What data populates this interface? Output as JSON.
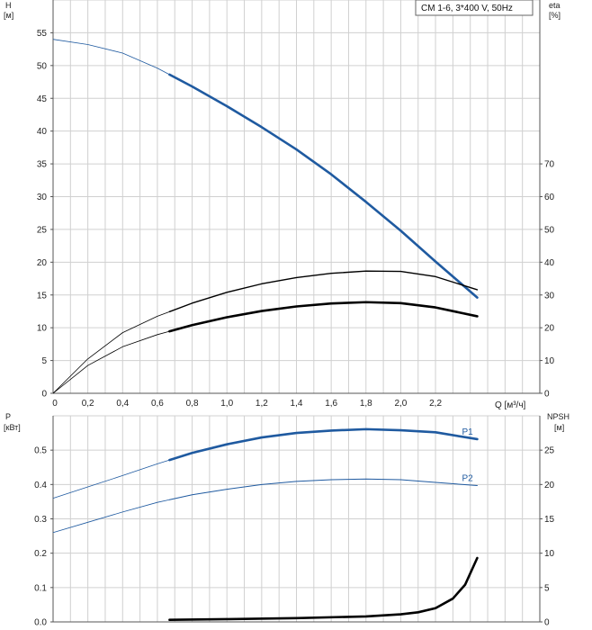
{
  "title_box": "CM 1-6, 3*400 V, 50Hz",
  "colors": {
    "blue": "#1f5aa0",
    "black": "#000000",
    "grid": "#d0d0d0",
    "axis": "#555555"
  },
  "chart_data": [
    {
      "type": "line",
      "xlabel": "Q [м³/ч]",
      "x_ticks": [
        "0",
        "0,2",
        "0,4",
        "0,6",
        "0,8",
        "1,0",
        "1,2",
        "1,4",
        "1,6",
        "1,8",
        "2,0",
        "2,2"
      ],
      "xlim": [
        0,
        2.8
      ],
      "ylabel_left": [
        "H",
        "[м]"
      ],
      "ylim_left": [
        0,
        60
      ],
      "y_ticks_left": [
        0,
        5,
        10,
        15,
        20,
        25,
        30,
        35,
        40,
        45,
        50,
        55
      ],
      "ylabel_right": [
        "eta",
        "[%]"
      ],
      "ylim_right": [
        0,
        120
      ],
      "y_ticks_right": [
        0,
        10,
        20,
        30,
        40,
        50,
        60,
        70
      ],
      "series": [
        {
          "axis": "left",
          "color": "#1f5aa0",
          "weight": "bold",
          "start_bold": 0.67,
          "points": [
            [
              0,
              54
            ],
            [
              0.2,
              53.2
            ],
            [
              0.4,
              51.9
            ],
            [
              0.6,
              49.6
            ],
            [
              0.8,
              46.8
            ],
            [
              1.0,
              43.8
            ],
            [
              1.2,
              40.6
            ],
            [
              1.4,
              37.2
            ],
            [
              1.6,
              33.4
            ],
            [
              1.8,
              29.2
            ],
            [
              2.0,
              24.8
            ],
            [
              2.2,
              20.1
            ],
            [
              2.44,
              14.6
            ]
          ]
        },
        {
          "axis": "right",
          "color": "#000000",
          "weight": "medium",
          "start_bold": 0.67,
          "points": [
            [
              0,
              0
            ],
            [
              0.2,
              10.5
            ],
            [
              0.4,
              18.5
            ],
            [
              0.6,
              23.5
            ],
            [
              0.8,
              27.5
            ],
            [
              1.0,
              30.8
            ],
            [
              1.2,
              33.4
            ],
            [
              1.4,
              35.3
            ],
            [
              1.6,
              36.6
            ],
            [
              1.8,
              37.3
            ],
            [
              2.0,
              37.2
            ],
            [
              2.2,
              35.6
            ],
            [
              2.44,
              31.6
            ]
          ]
        },
        {
          "axis": "right",
          "color": "#000000",
          "weight": "bold",
          "start_bold": 0.67,
          "points": [
            [
              0,
              0
            ],
            [
              0.2,
              8.5
            ],
            [
              0.4,
              14.2
            ],
            [
              0.6,
              17.9
            ],
            [
              0.8,
              20.8
            ],
            [
              1.0,
              23.2
            ],
            [
              1.2,
              25.1
            ],
            [
              1.4,
              26.5
            ],
            [
              1.6,
              27.4
            ],
            [
              1.8,
              27.8
            ],
            [
              2.0,
              27.5
            ],
            [
              2.2,
              26.2
            ],
            [
              2.44,
              23.5
            ]
          ]
        }
      ]
    },
    {
      "type": "line",
      "xlim": [
        0,
        2.8
      ],
      "ylabel_left": [
        "P",
        "[кВт]"
      ],
      "ylim_left": [
        0,
        0.6
      ],
      "y_ticks_left": [
        "0.0",
        "0.1",
        "0.2",
        "0.3",
        "0.4",
        "0.5"
      ],
      "ylabel_right": [
        "NPSH",
        "[м]"
      ],
      "ylim_right": [
        0,
        30
      ],
      "y_ticks_right": [
        0,
        5,
        10,
        15,
        20,
        25
      ],
      "series": [
        {
          "name": "P1",
          "axis": "left",
          "color": "#1f5aa0",
          "weight": "bold",
          "start_bold": 0.67,
          "points": [
            [
              0,
              0.36
            ],
            [
              0.2,
              0.393
            ],
            [
              0.4,
              0.426
            ],
            [
              0.6,
              0.46
            ],
            [
              0.8,
              0.492
            ],
            [
              1.0,
              0.517
            ],
            [
              1.2,
              0.537
            ],
            [
              1.4,
              0.55
            ],
            [
              1.6,
              0.557
            ],
            [
              1.8,
              0.561
            ],
            [
              2.0,
              0.558
            ],
            [
              2.2,
              0.552
            ],
            [
              2.44,
              0.532
            ]
          ]
        },
        {
          "name": "P2",
          "axis": "left",
          "color": "#1f5aa0",
          "weight": "thin",
          "start_bold": 0.67,
          "points": [
            [
              0,
              0.26
            ],
            [
              0.2,
              0.29
            ],
            [
              0.4,
              0.32
            ],
            [
              0.6,
              0.348
            ],
            [
              0.8,
              0.37
            ],
            [
              1.0,
              0.386
            ],
            [
              1.2,
              0.4
            ],
            [
              1.4,
              0.409
            ],
            [
              1.6,
              0.414
            ],
            [
              1.8,
              0.416
            ],
            [
              2.0,
              0.414
            ],
            [
              2.2,
              0.406
            ],
            [
              2.44,
              0.397
            ]
          ]
        },
        {
          "axis": "right",
          "color": "#000000",
          "weight": "bold",
          "start_bold": 0.67,
          "points": [
            [
              0.67,
              0.3
            ],
            [
              1.0,
              0.4
            ],
            [
              1.4,
              0.55
            ],
            [
              1.8,
              0.8
            ],
            [
              2.0,
              1.1
            ],
            [
              2.1,
              1.4
            ],
            [
              2.2,
              2.0
            ],
            [
              2.3,
              3.4
            ],
            [
              2.37,
              5.4
            ],
            [
              2.44,
              9.3
            ]
          ]
        }
      ]
    }
  ]
}
